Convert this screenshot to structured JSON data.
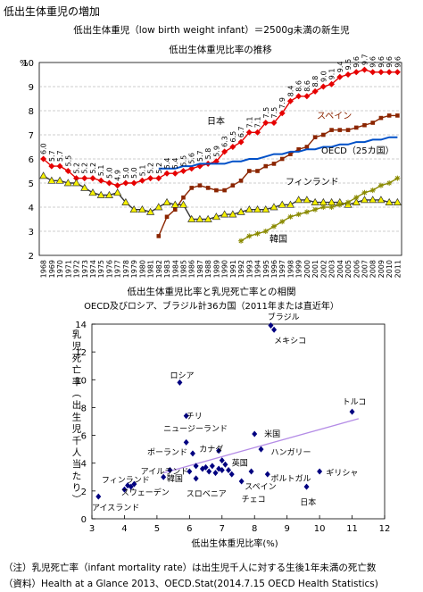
{
  "page": {
    "title": "低出生体重児の増加",
    "subtitle": "低出生体重児（low birth weight infant）＝2500g未満の新生児",
    "note": "（注）乳児死亡率（infant mortality rate）は出生児千人に対する生後1年未満の死亡数",
    "source": "（資料）Health at a Glance 2013、OECD.Stat(2014.7.15 OECD Health Statistics)"
  },
  "chart_data": [
    {
      "type": "line",
      "title": "低出生体重児比率の推移",
      "yunit": "%",
      "ylim": [
        2,
        10
      ],
      "yticks": [
        2,
        3,
        4,
        5,
        6,
        7,
        8,
        9,
        10
      ],
      "x": [
        1968,
        1969,
        1970,
        1971,
        1972,
        1973,
        1974,
        1975,
        1976,
        1977,
        1978,
        1979,
        1980,
        1981,
        1982,
        1983,
        1984,
        1985,
        1986,
        1987,
        1988,
        1989,
        1990,
        1991,
        1992,
        1993,
        1994,
        1995,
        1996,
        1997,
        1998,
        1999,
        2000,
        2001,
        2002,
        2003,
        2004,
        2005,
        2006,
        2007,
        2008,
        2009,
        2010,
        2011
      ],
      "grid": true,
      "series": [
        {
          "name": "日本",
          "color": "#e60000",
          "marker": "diamond",
          "values": [
            6.0,
            5.7,
            5.7,
            5.5,
            5.2,
            5.2,
            5.2,
            5.1,
            5.0,
            4.9,
            5.0,
            5.0,
            5.1,
            5.2,
            5.2,
            5.4,
            5.4,
            5.5,
            5.6,
            5.7,
            5.8,
            5.9,
            6.3,
            6.5,
            6.7,
            7.1,
            7.1,
            7.5,
            7.5,
            7.9,
            8.4,
            8.6,
            8.6,
            8.8,
            9.0,
            9.1,
            9.4,
            9.5,
            9.6,
            9.7,
            9.6,
            9.6,
            9.6,
            9.6
          ],
          "data_labels": [
            "6.0",
            "5.7",
            "5.7",
            "5.5",
            "5.2",
            "5.2",
            "5.2",
            "5.1",
            "5.0",
            "4.9",
            "5.0",
            "5.0",
            "5.1",
            "5.2",
            "5.2",
            "5.4",
            "5.4",
            "5.5",
            "5.6",
            "5.7",
            "5.8",
            "5.9",
            "6.3",
            "6.5",
            "6.7",
            "7.1",
            "7.1",
            "7.5",
            "7.5",
            "7.9",
            "8.4",
            "8.6",
            "8.6",
            "8.8",
            "9.0",
            "9.1",
            "9.4",
            "9.5",
            "9.6",
            "9.7",
            "9.6",
            "9.6",
            "9.6",
            "9.6"
          ]
        },
        {
          "name": "スペイン",
          "color": "#8b2500",
          "marker": "square",
          "values": [
            null,
            null,
            null,
            null,
            null,
            null,
            null,
            null,
            null,
            null,
            null,
            null,
            null,
            null,
            2.8,
            3.6,
            3.9,
            4.4,
            4.8,
            4.9,
            4.8,
            4.7,
            4.7,
            4.9,
            5.1,
            5.5,
            5.5,
            5.7,
            5.8,
            6.0,
            6.2,
            6.4,
            6.5,
            6.9,
            7.0,
            7.2,
            7.2,
            7.2,
            7.3,
            7.4,
            7.5,
            7.7,
            7.8,
            7.8
          ]
        },
        {
          "name": "OECD（25カ国）",
          "color": "#0050c8",
          "marker": "none",
          "values": [
            null,
            null,
            null,
            null,
            null,
            null,
            null,
            null,
            null,
            null,
            null,
            null,
            null,
            null,
            5.6,
            5.6,
            5.6,
            5.7,
            5.7,
            5.8,
            5.8,
            5.8,
            5.8,
            5.9,
            5.9,
            6.0,
            6.0,
            6.1,
            6.2,
            6.2,
            6.3,
            6.3,
            6.4,
            6.4,
            6.5,
            6.5,
            6.6,
            6.6,
            6.7,
            6.7,
            6.8,
            6.8,
            6.9,
            6.9
          ]
        },
        {
          "name": "フィンランド",
          "color": "#333333",
          "marker": "triangle",
          "values": [
            5.3,
            5.1,
            5.1,
            5.0,
            5.0,
            4.8,
            4.6,
            4.5,
            4.5,
            4.6,
            4.2,
            3.9,
            3.9,
            3.8,
            4.0,
            4.2,
            4.1,
            4.1,
            3.5,
            3.5,
            3.5,
            3.6,
            3.7,
            3.7,
            3.8,
            3.9,
            3.9,
            3.9,
            4.0,
            4.1,
            4.1,
            4.3,
            4.3,
            4.2,
            4.2,
            4.2,
            4.2,
            4.1,
            4.2,
            4.3,
            4.3,
            4.3,
            4.2,
            4.2
          ]
        },
        {
          "name": "韓国",
          "color": "#8a8a00",
          "marker": "star",
          "values": [
            null,
            null,
            null,
            null,
            null,
            null,
            null,
            null,
            null,
            null,
            null,
            null,
            null,
            null,
            null,
            null,
            null,
            null,
            null,
            null,
            null,
            null,
            null,
            null,
            2.6,
            2.8,
            2.9,
            3.0,
            3.2,
            3.4,
            3.6,
            3.7,
            3.8,
            3.9,
            4.0,
            4.0,
            4.1,
            4.2,
            4.4,
            4.6,
            4.7,
            4.9,
            5.0,
            5.2
          ]
        }
      ]
    },
    {
      "type": "scatter",
      "title": "低出生体重児比率と乳児死亡率との相関",
      "subtitle": "OECD及びロシア、ブラジル計36カ国（2011年または直近年）",
      "xlabel": "低出生体重児比率(%)",
      "ylabel": "乳児死亡率（出生児千人当たり）",
      "xlim": [
        3,
        12
      ],
      "ylim": [
        0,
        14
      ],
      "xticks": [
        3,
        4,
        5,
        6,
        7,
        8,
        9,
        10,
        11,
        12
      ],
      "yticks": [
        0,
        2,
        4,
        6,
        8,
        10,
        12,
        14
      ],
      "marker_color": "#000080",
      "trendline": {
        "color": "#b48ce6",
        "x": [
          5.2,
          11.2
        ],
        "y": [
          3.3,
          7.2
        ]
      },
      "labels": [
        {
          "text": "ブラジル",
          "x": 8.4,
          "y": 14.5
        },
        {
          "text": "メキシコ",
          "x": 8.6,
          "y": 12.8
        },
        {
          "text": "トルコ",
          "x": 10.7,
          "y": 8.4
        },
        {
          "text": "ロシア",
          "x": 5.4,
          "y": 10.3
        },
        {
          "text": "チリ",
          "x": 5.9,
          "y": 7.4
        },
        {
          "text": "ニュージーランド",
          "x": 5.2,
          "y": 6.5
        },
        {
          "text": "米国",
          "x": 8.3,
          "y": 6.1
        },
        {
          "text": "ポーランド",
          "x": 4.7,
          "y": 4.8
        },
        {
          "text": "カナダ",
          "x": 6.3,
          "y": 5.0
        },
        {
          "text": "ハンガリー",
          "x": 8.5,
          "y": 4.8
        },
        {
          "text": "英国",
          "x": 7.3,
          "y": 4.0
        },
        {
          "text": "アイルランド",
          "x": 4.5,
          "y": 3.4
        },
        {
          "text": "韓国",
          "x": 5.3,
          "y": 2.9
        },
        {
          "text": "フィンランド",
          "x": 3.3,
          "y": 2.8
        },
        {
          "text": "ギリシャ",
          "x": 10.2,
          "y": 3.3
        },
        {
          "text": "ポルトガル",
          "x": 8.5,
          "y": 2.9
        },
        {
          "text": "スペイン",
          "x": 7.7,
          "y": 2.3
        },
        {
          "text": "スウェーデン",
          "x": 3.9,
          "y": 1.9
        },
        {
          "text": "スロベニア",
          "x": 5.9,
          "y": 1.8
        },
        {
          "text": "チェコ",
          "x": 7.6,
          "y": 1.4
        },
        {
          "text": "日本",
          "x": 9.4,
          "y": 1.2
        },
        {
          "text": "アイスランド",
          "x": 3.0,
          "y": 0.8
        }
      ],
      "points": [
        {
          "x": 8.5,
          "y": 13.9
        },
        {
          "x": 8.6,
          "y": 13.6
        },
        {
          "x": 11.0,
          "y": 7.7
        },
        {
          "x": 5.7,
          "y": 9.8
        },
        {
          "x": 5.9,
          "y": 7.4
        },
        {
          "x": 5.9,
          "y": 5.5
        },
        {
          "x": 8.0,
          "y": 6.1
        },
        {
          "x": 6.1,
          "y": 4.7
        },
        {
          "x": 6.9,
          "y": 4.9
        },
        {
          "x": 8.2,
          "y": 5.0
        },
        {
          "x": 7.0,
          "y": 4.2
        },
        {
          "x": 5.4,
          "y": 3.5
        },
        {
          "x": 5.2,
          "y": 3.0
        },
        {
          "x": 4.1,
          "y": 2.4
        },
        {
          "x": 4.3,
          "y": 2.5
        },
        {
          "x": 4.0,
          "y": 2.1
        },
        {
          "x": 4.2,
          "y": 2.3
        },
        {
          "x": 3.2,
          "y": 1.6
        },
        {
          "x": 6.2,
          "y": 2.9
        },
        {
          "x": 7.6,
          "y": 2.7
        },
        {
          "x": 8.4,
          "y": 3.2
        },
        {
          "x": 7.9,
          "y": 3.4
        },
        {
          "x": 10.0,
          "y": 3.4
        },
        {
          "x": 9.6,
          "y": 2.3
        },
        {
          "x": 6.2,
          "y": 3.8
        },
        {
          "x": 6.4,
          "y": 3.6
        },
        {
          "x": 6.5,
          "y": 3.7
        },
        {
          "x": 6.6,
          "y": 3.4
        },
        {
          "x": 6.7,
          "y": 3.8
        },
        {
          "x": 6.8,
          "y": 3.3
        },
        {
          "x": 6.9,
          "y": 3.6
        },
        {
          "x": 7.0,
          "y": 3.5
        },
        {
          "x": 7.1,
          "y": 3.9
        },
        {
          "x": 7.2,
          "y": 3.5
        },
        {
          "x": 7.3,
          "y": 3.2
        },
        {
          "x": 6.0,
          "y": 3.4
        }
      ]
    }
  ]
}
